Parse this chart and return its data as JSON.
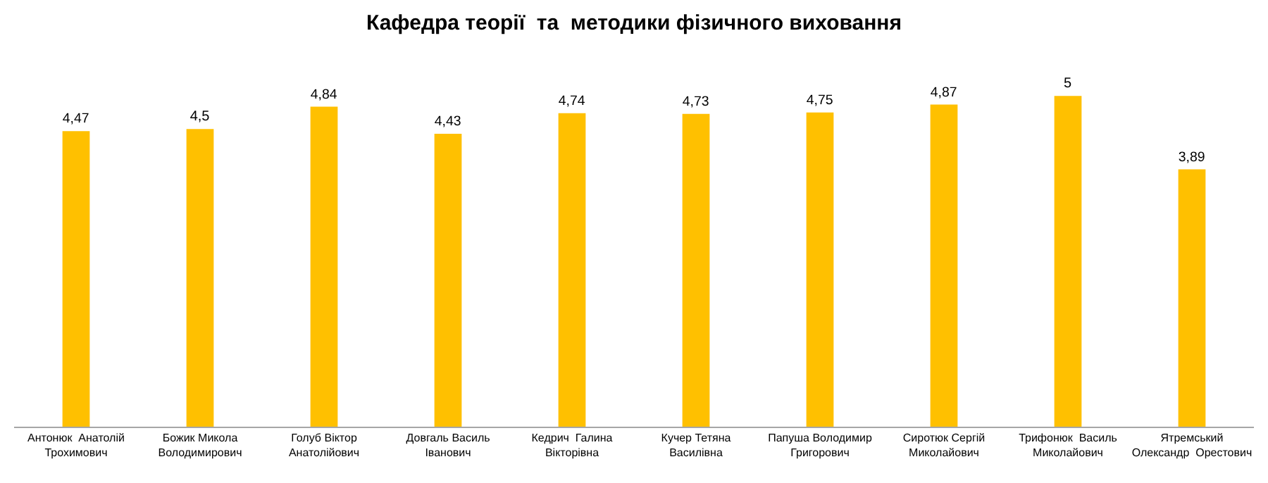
{
  "chart_data": {
    "type": "bar",
    "title": "Кафедра теорії  та  методики фізичного виховання",
    "categories": [
      "Антонюк  Анатолій\nТрохимович",
      "Божик Микола\nВолодимирович",
      "Голуб Віктор\nАнатолійович",
      "Довгаль Василь\nІванович",
      "Кедрич  Галина\nВікторівна",
      "Кучер Тетяна\nВасилівна",
      "Папуша Володимир\nГригорович",
      "Сиротюк Сергій\nМиколайович",
      "Трифонюк  Василь\nМиколайович",
      "Ятремський\nОлександр  Орестович"
    ],
    "values": [
      4.47,
      4.5,
      4.84,
      4.43,
      4.74,
      4.73,
      4.75,
      4.87,
      5,
      3.89
    ],
    "value_labels": [
      "4,47",
      "4,5",
      "4,84",
      "4,43",
      "4,74",
      "4,73",
      "4,75",
      "4,87",
      "5",
      "3,89"
    ],
    "color": "#ffc000"
  }
}
